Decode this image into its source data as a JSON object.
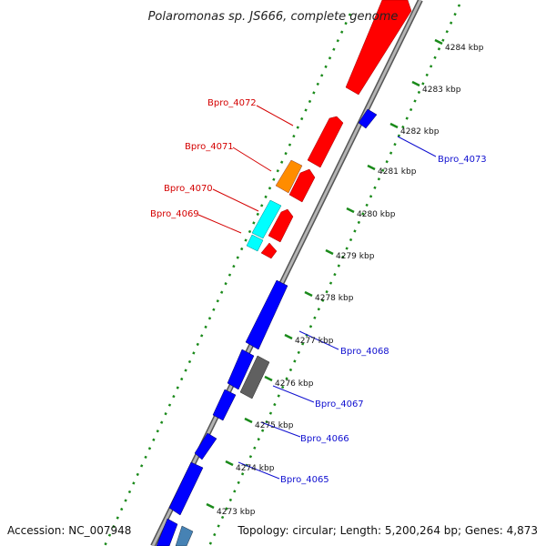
{
  "title": "Polaromonas sp. JS666, complete genome",
  "accession_text": "Accession: NC_007948",
  "summary_text": "Topology: circular; Length: 5,200,264 bp; Genes: 4,873",
  "colors": {
    "forward_gene": "#ff0000",
    "reverse_gene": "#0000ff",
    "orange_gene": "#ff8c00",
    "cyan_gene": "#00ffff",
    "gray_gene": "#606060",
    "steelblue_gene": "#4682b4",
    "backbone": "#909090",
    "tick_dots": "#1a8a1a",
    "label_red": "#d40000",
    "label_blue": "#1010d0"
  },
  "ticks": [
    "4273 kbp",
    "4274 kbp",
    "4275 kbp",
    "4276 kbp",
    "4277 kbp",
    "4278 kbp",
    "4279 kbp",
    "4280 kbp",
    "4281 kbp",
    "4282 kbp",
    "4283 kbp",
    "4284 kbp"
  ],
  "labels_forward": [
    "Bpro_4072",
    "Bpro_4071",
    "Bpro_4070",
    "Bpro_4069"
  ],
  "labels_reverse": [
    "Bpro_4073",
    "Bpro_4068",
    "Bpro_4067",
    "Bpro_4066",
    "Bpro_4065"
  ]
}
